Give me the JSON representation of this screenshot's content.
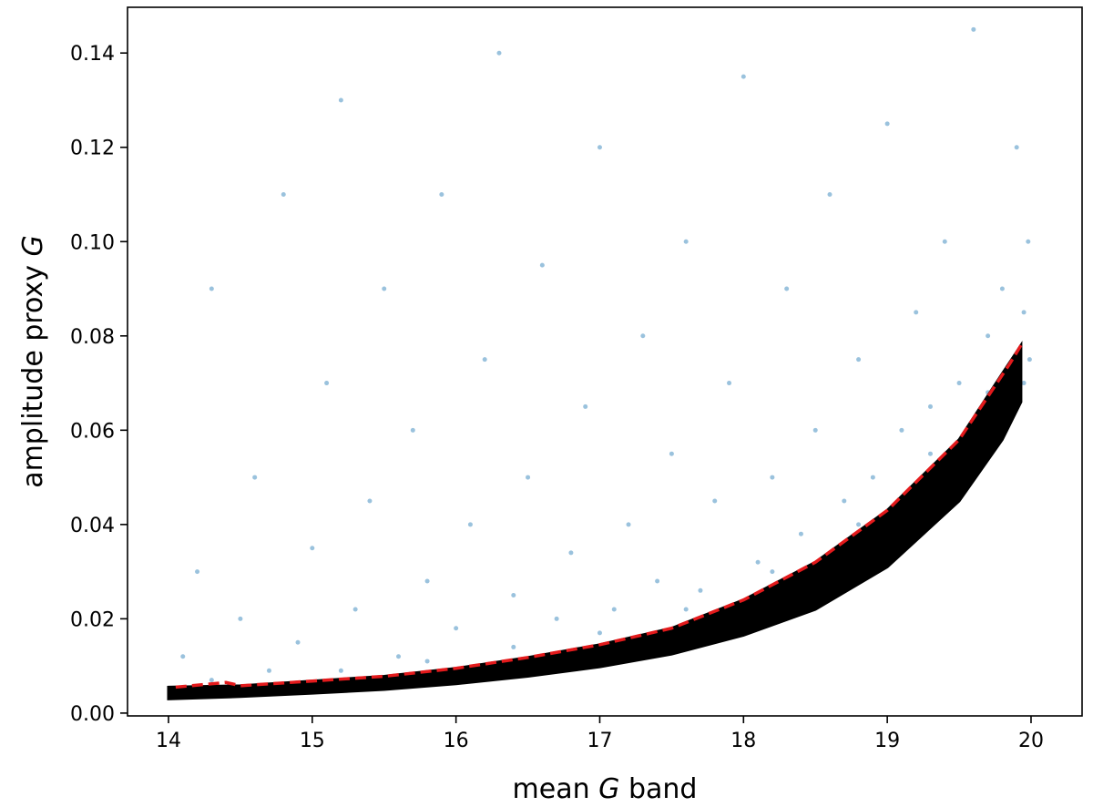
{
  "chart_data": {
    "type": "scatter",
    "xlabel": {
      "before": "mean",
      "italic": "G",
      "after": "band"
    },
    "ylabel": {
      "before": "amplitude proxy",
      "italic": "G"
    },
    "xlim": [
      13.715,
      20.355
    ],
    "ylim": [
      -0.0006,
      0.1497
    ],
    "xticks": [
      14,
      15,
      16,
      17,
      18,
      19,
      20
    ],
    "yticks": [
      {
        "value": 0,
        "label": "0.00"
      },
      0.02,
      0.04,
      0.06,
      0.08,
      {
        "value": 0.1,
        "label": "0.10"
      },
      0.12,
      0.14
    ],
    "series": [
      {
        "kind": "scatter",
        "color": "#1f77b4",
        "x": [
          14.1,
          14.2,
          14.3,
          14.5,
          14.6,
          14.8,
          14.9,
          15.0,
          15.1,
          15.2,
          15.3,
          15.4,
          15.5,
          15.6,
          15.7,
          15.8,
          15.9,
          16.0,
          16.1,
          16.2,
          16.3,
          16.4,
          16.5,
          16.6,
          16.7,
          16.8,
          16.9,
          17.0,
          17.1,
          17.2,
          17.3,
          17.4,
          17.5,
          17.6,
          17.7,
          17.8,
          17.9,
          18.0,
          18.1,
          18.2,
          18.3,
          18.4,
          18.5,
          18.6,
          18.7,
          18.8,
          18.9,
          19.0,
          19.1,
          19.2,
          19.3,
          19.4,
          19.5,
          19.6,
          19.7,
          19.8,
          19.9,
          19.95,
          19.98,
          19.99,
          14.3,
          14.7,
          15.2,
          15.8,
          16.4,
          17.0,
          17.6,
          18.2,
          18.8,
          19.3,
          19.7,
          19.95
        ],
        "y": [
          0.012,
          0.03,
          0.09,
          0.02,
          0.05,
          0.11,
          0.015,
          0.035,
          0.07,
          0.13,
          0.022,
          0.045,
          0.09,
          0.012,
          0.06,
          0.028,
          0.11,
          0.018,
          0.04,
          0.075,
          0.14,
          0.025,
          0.05,
          0.095,
          0.02,
          0.034,
          0.065,
          0.12,
          0.022,
          0.04,
          0.08,
          0.028,
          0.055,
          0.1,
          0.026,
          0.045,
          0.07,
          0.135,
          0.032,
          0.05,
          0.09,
          0.038,
          0.06,
          0.11,
          0.045,
          0.075,
          0.05,
          0.125,
          0.06,
          0.085,
          0.065,
          0.1,
          0.07,
          0.145,
          0.08,
          0.09,
          0.12,
          0.085,
          0.1,
          0.075,
          0.007,
          0.009,
          0.009,
          0.011,
          0.014,
          0.017,
          0.022,
          0.03,
          0.04,
          0.055,
          0.068,
          0.07
        ]
      },
      {
        "kind": "band",
        "color": "#000000",
        "x": [
          14.0,
          14.5,
          15.0,
          15.5,
          16.0,
          16.5,
          17.0,
          17.5,
          18.0,
          18.5,
          19.0,
          19.5,
          19.8,
          19.93
        ],
        "y": [
          0.0055,
          0.0058,
          0.0068,
          0.0078,
          0.0095,
          0.0118,
          0.0145,
          0.018,
          0.024,
          0.032,
          0.043,
          0.058,
          0.072,
          0.078
        ],
        "y_lower": [
          0.003,
          0.0035,
          0.0042,
          0.005,
          0.0062,
          0.0078,
          0.0098,
          0.0125,
          0.0165,
          0.022,
          0.031,
          0.045,
          0.058,
          0.066
        ]
      },
      {
        "kind": "line",
        "color": "#e31a1c",
        "dashed": true,
        "x": [
          14.05,
          14.4,
          14.5,
          15.0,
          15.5,
          16.0,
          16.5,
          17.0,
          17.5,
          18.0,
          18.5,
          19.0,
          19.5,
          19.85,
          19.93
        ],
        "y": [
          0.0055,
          0.0065,
          0.0058,
          0.0068,
          0.0078,
          0.0095,
          0.0118,
          0.0145,
          0.018,
          0.024,
          0.032,
          0.043,
          0.058,
          0.074,
          0.078
        ]
      }
    ]
  }
}
